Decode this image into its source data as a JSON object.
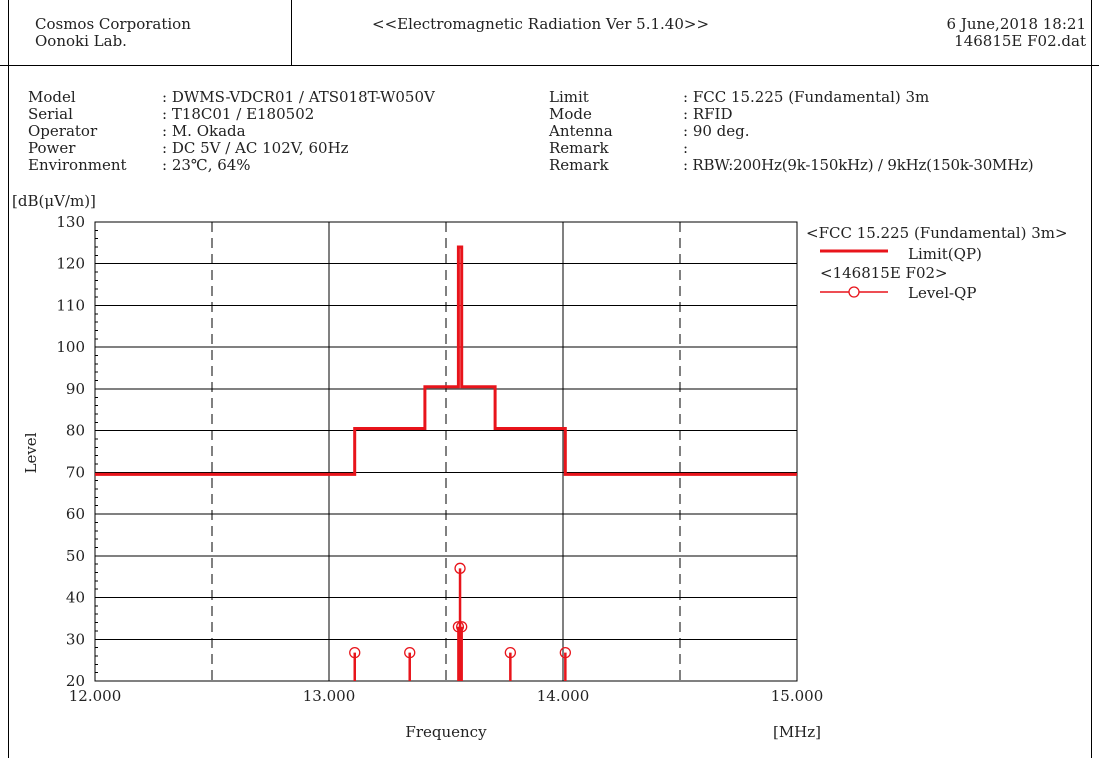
{
  "header": {
    "company": "Cosmos Corporation",
    "lab": "Oonoki Lab.",
    "title": "<<Electromagnetic Radiation Ver 5.1.40>>",
    "datetime": "6 June,2018 18:21",
    "filename": "146815E F02.dat"
  },
  "info_left": [
    {
      "label": "Model",
      "value": ": DWMS-VDCR01 / ATS018T-W050V"
    },
    {
      "label": "Serial",
      "value": ": T18C01 / E180502"
    },
    {
      "label": "Operator",
      "value": ": M. Okada"
    },
    {
      "label": "Power",
      "value": ": DC 5V / AC 102V, 60Hz"
    },
    {
      "label": "Environment",
      "value": ": 23℃, 64%"
    }
  ],
  "info_right": [
    {
      "label": "Limit",
      "value": ": FCC 15.225 (Fundamental) 3m"
    },
    {
      "label": "Mode",
      "value": ": RFID"
    },
    {
      "label": "Antenna",
      "value": ": 90 deg."
    },
    {
      "label": "Remark",
      "value": ":"
    },
    {
      "label": "Remark",
      "value": ": RBW:200Hz(9k-150kHz) / 9kHz(150k-30MHz)"
    }
  ],
  "legend": {
    "group1": "<FCC 15.225 (Fundamental) 3m>",
    "item1": "Limit(QP)",
    "group2": "<146815E F02>",
    "item2": "Level-QP"
  },
  "colors": {
    "series": "#e8141b",
    "grid": "#000000",
    "text": "#222222"
  },
  "chart_data": {
    "type": "line",
    "xlabel": "Frequency",
    "xunit": "[MHz]",
    "ylabel": "Level",
    "yunit": "[dB(μV/m)]",
    "xlim": [
      12.0,
      15.0
    ],
    "ylim": [
      20,
      130
    ],
    "x_ticks": [
      12.0,
      13.0,
      14.0,
      15.0
    ],
    "x_tick_labels": [
      "12.000",
      "13.000",
      "14.000",
      "15.000"
    ],
    "x_minor_dashed": [
      12.5,
      13.5,
      14.5
    ],
    "y_ticks": [
      20,
      30,
      40,
      50,
      60,
      70,
      80,
      90,
      100,
      110,
      120,
      130
    ],
    "grid": true,
    "legend_position": "right",
    "series": [
      {
        "name": "Limit(QP)",
        "kind": "step",
        "points": [
          [
            12.0,
            69.5
          ],
          [
            13.11,
            69.5
          ],
          [
            13.11,
            80.5
          ],
          [
            13.41,
            80.5
          ],
          [
            13.41,
            90.5
          ],
          [
            13.553,
            90.5
          ],
          [
            13.553,
            124.0
          ],
          [
            13.567,
            124.0
          ],
          [
            13.567,
            90.5
          ],
          [
            13.71,
            90.5
          ],
          [
            13.71,
            80.5
          ],
          [
            14.01,
            80.5
          ],
          [
            14.01,
            69.5
          ],
          [
            15.0,
            69.5
          ]
        ]
      },
      {
        "name": "Level-QP",
        "kind": "stem",
        "points": [
          [
            13.11,
            26.8
          ],
          [
            13.345,
            26.8
          ],
          [
            13.553,
            33.0
          ],
          [
            13.56,
            47.0
          ],
          [
            13.567,
            33.0
          ],
          [
            13.775,
            26.8
          ],
          [
            14.01,
            26.8
          ]
        ]
      }
    ]
  }
}
